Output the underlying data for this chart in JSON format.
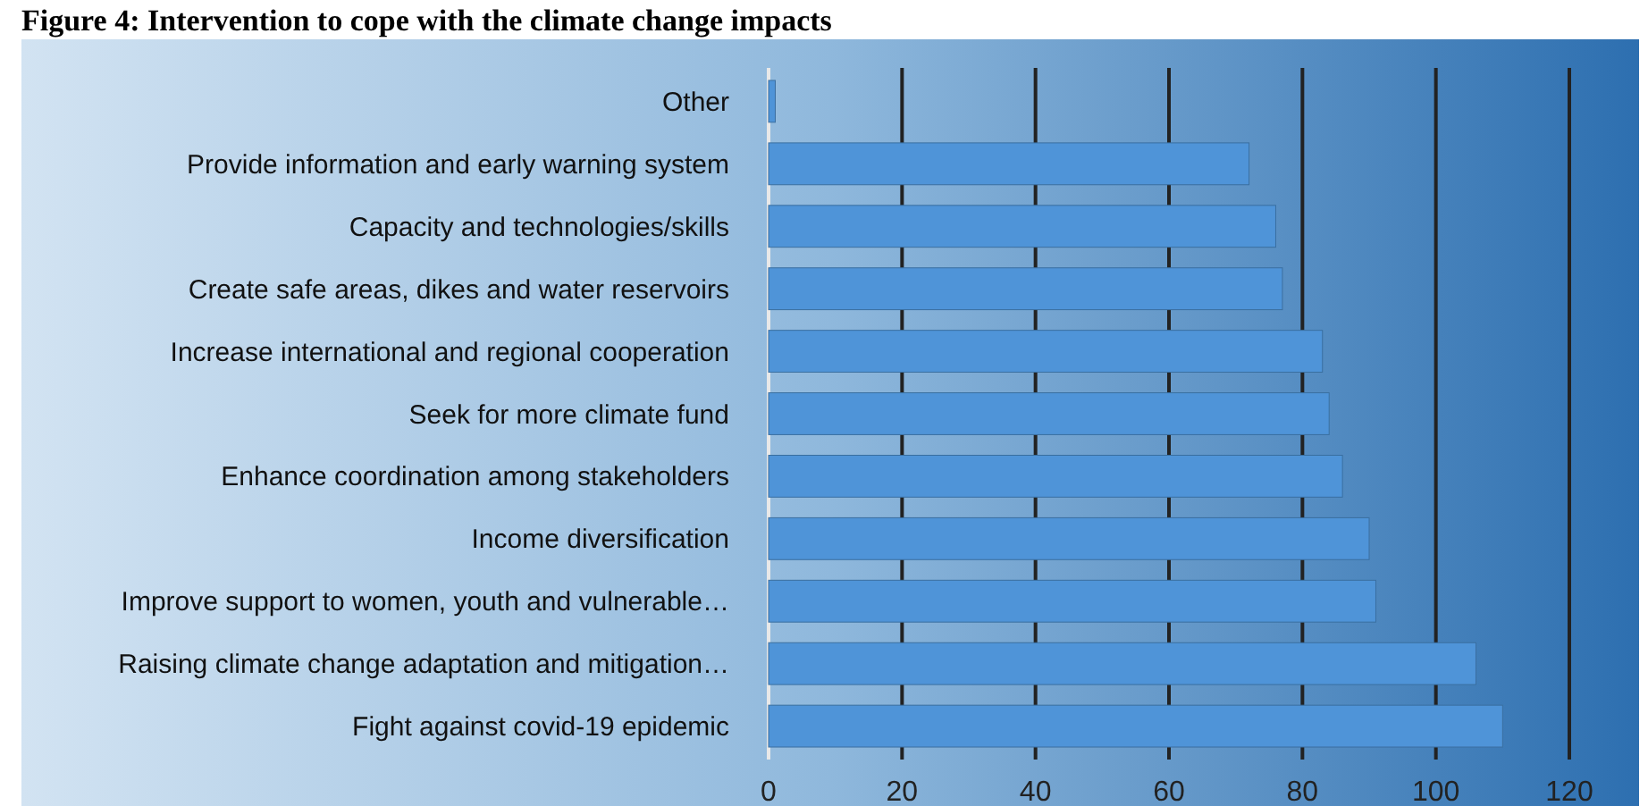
{
  "chart_data": {
    "type": "bar",
    "orientation": "horizontal",
    "title": "Figure 4: Intervention to cope with the climate change impacts",
    "categories": [
      "Other",
      "Provide information and early warning system",
      "Capacity and technologies/skills",
      "Create safe areas, dikes and water reservoirs",
      "Increase international and regional cooperation",
      "Seek for more climate fund",
      "Enhance coordination among stakeholders",
      "Income diversification",
      "Improve support to women, youth and vulnerable…",
      "Raising climate change adaptation and mitigation…",
      "Fight against covid-19 epidemic"
    ],
    "values": [
      1,
      72,
      76,
      77,
      83,
      84,
      86,
      90,
      91,
      106,
      110
    ],
    "color": "#4f94d8",
    "xlim": [
      0,
      120
    ],
    "xticks": [
      0,
      20,
      40,
      60,
      80,
      100,
      120
    ],
    "grid": "x"
  }
}
